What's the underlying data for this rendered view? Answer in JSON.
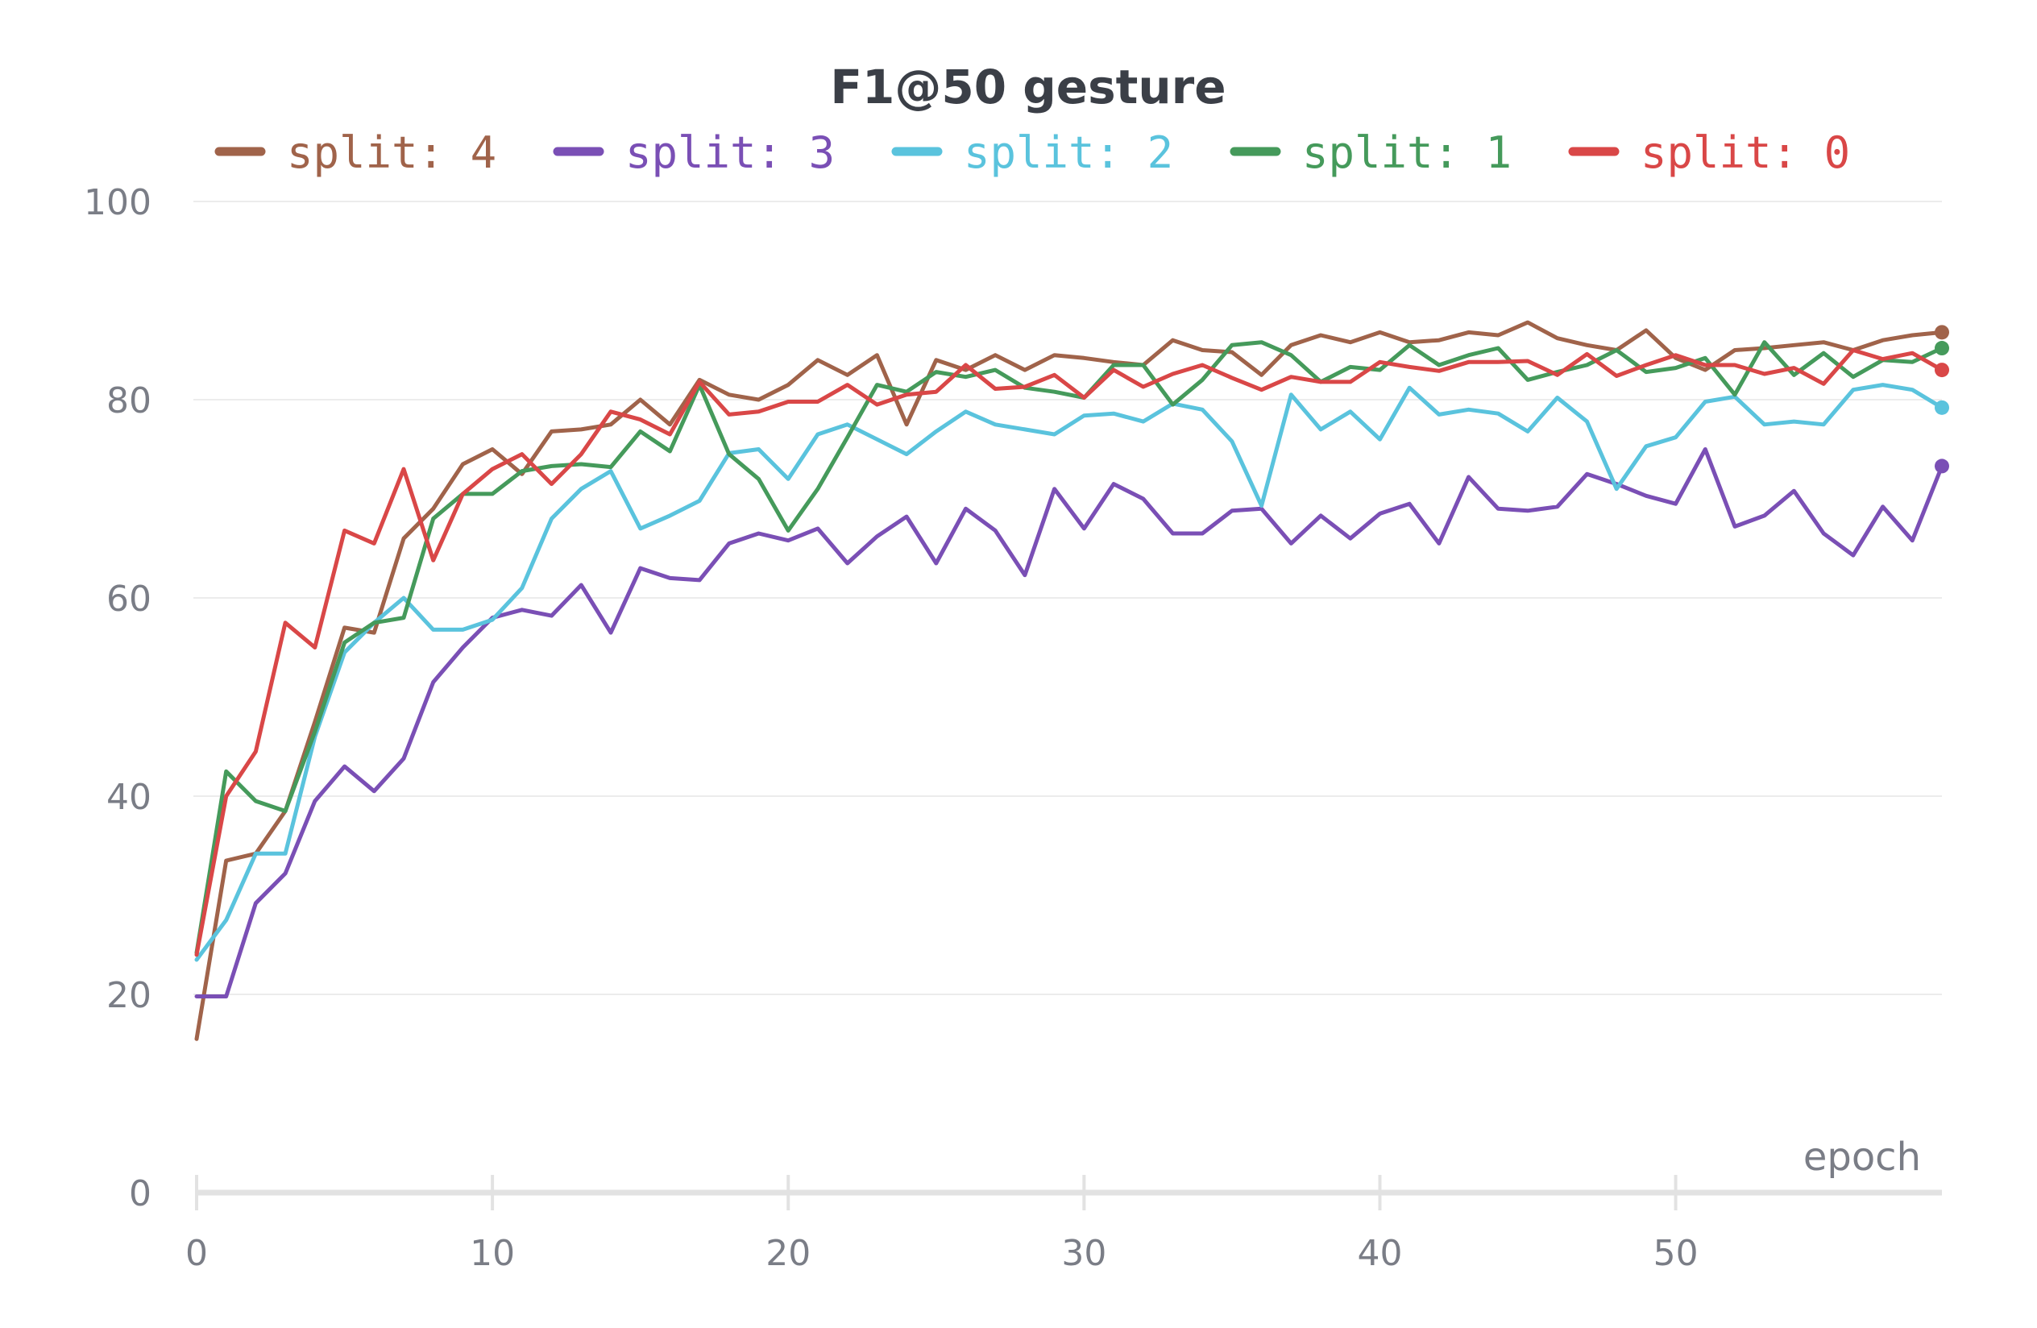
{
  "chart_data": {
    "type": "line",
    "title": "F1@50 gesture",
    "xlabel": "epoch",
    "ylabel": "",
    "xlim": [
      0,
      59
    ],
    "ylim": [
      0,
      100
    ],
    "xticks": [
      0,
      10,
      20,
      30,
      40,
      50
    ],
    "yticks": [
      0,
      20,
      40,
      60,
      80,
      100
    ],
    "grid": true,
    "legend_position": "top",
    "series": [
      {
        "name": "split: 4",
        "color": "#a0634a",
        "x": [
          0,
          1,
          2,
          3,
          4,
          5,
          6,
          7,
          8,
          9,
          10,
          11,
          12,
          13,
          14,
          15,
          16,
          17,
          18,
          19,
          20,
          21,
          22,
          23,
          24,
          25,
          26,
          27,
          28,
          29,
          30,
          31,
          32,
          33,
          34,
          35,
          36,
          37,
          38,
          39,
          40,
          41,
          42,
          43,
          44,
          45,
          46,
          47,
          48,
          49,
          50,
          51,
          52,
          53,
          54,
          55,
          56,
          57,
          58,
          59
        ],
        "values": [
          15.5,
          33.5,
          34.2,
          38.5,
          47.5,
          57,
          56.5,
          66,
          69,
          73.5,
          75,
          72.5,
          76.8,
          77,
          77.5,
          80,
          77.5,
          82,
          80.5,
          80,
          81.5,
          84,
          82.5,
          84.5,
          77.5,
          84,
          83,
          84.5,
          83,
          84.5,
          84.2,
          83.8,
          83.5,
          86,
          85,
          84.8,
          82.5,
          85.5,
          86.5,
          85.8,
          86.8,
          85.8,
          86,
          86.8,
          86.5,
          87.8,
          86.2,
          85.5,
          85,
          87,
          84.2,
          83,
          85,
          85.2,
          85.5,
          85.8,
          85,
          86,
          86.5,
          86.8
        ]
      },
      {
        "name": "split: 3",
        "color": "#7a4fb5",
        "x": [
          0,
          1,
          2,
          3,
          4,
          5,
          6,
          7,
          8,
          9,
          10,
          11,
          12,
          13,
          14,
          15,
          16,
          17,
          18,
          19,
          20,
          21,
          22,
          23,
          24,
          25,
          26,
          27,
          28,
          29,
          30,
          31,
          32,
          33,
          34,
          35,
          36,
          37,
          38,
          39,
          40,
          41,
          42,
          43,
          44,
          45,
          46,
          47,
          48,
          49,
          50,
          51,
          52,
          53,
          54,
          55,
          56,
          57,
          58,
          59
        ],
        "values": [
          19.8,
          19.8,
          29.2,
          32.2,
          39.5,
          43,
          40.5,
          43.8,
          51.5,
          55,
          58,
          58.8,
          58.2,
          61.3,
          56.5,
          63,
          62,
          61.8,
          65.5,
          66.5,
          65.8,
          67,
          63.5,
          66.2,
          68.2,
          63.5,
          69,
          66.8,
          62.3,
          71,
          67,
          71.5,
          70,
          66.5,
          66.5,
          68.8,
          69,
          65.5,
          68.3,
          66,
          68.5,
          69.5,
          65.5,
          72.2,
          69,
          68.8,
          69.2,
          72.5,
          71.5,
          70.3,
          69.5,
          75,
          67.2,
          68.3,
          70.8,
          66.5,
          64.3,
          69.2,
          65.8,
          73.3
        ]
      },
      {
        "name": "split: 2",
        "color": "#5ac3dd",
        "x": [
          0,
          1,
          2,
          3,
          4,
          5,
          6,
          7,
          8,
          9,
          10,
          11,
          12,
          13,
          14,
          15,
          16,
          17,
          18,
          19,
          20,
          21,
          22,
          23,
          24,
          25,
          26,
          27,
          28,
          29,
          30,
          31,
          32,
          33,
          34,
          35,
          36,
          37,
          38,
          39,
          40,
          41,
          42,
          43,
          44,
          45,
          46,
          47,
          48,
          49,
          50,
          51,
          52,
          53,
          54,
          55,
          56,
          57,
          58,
          59
        ],
        "values": [
          23.5,
          27.5,
          34.2,
          34.2,
          46,
          54.5,
          57.5,
          60,
          56.8,
          56.8,
          57.8,
          61,
          68,
          71,
          72.8,
          67,
          68.3,
          69.8,
          74.6,
          75,
          72,
          76.5,
          77.5,
          76,
          74.5,
          76.8,
          78.8,
          77.5,
          77,
          76.5,
          78.4,
          78.6,
          77.8,
          79.6,
          79,
          75.8,
          69.3,
          80.5,
          77,
          78.8,
          76,
          81.2,
          78.5,
          79,
          78.6,
          76.8,
          80.2,
          77.8,
          71,
          75.3,
          76.2,
          79.8,
          80.3,
          77.5,
          77.8,
          77.5,
          81,
          81.5,
          81,
          79.2
        ]
      },
      {
        "name": "split: 1",
        "color": "#459a5b",
        "x": [
          0,
          1,
          2,
          3,
          4,
          5,
          6,
          7,
          8,
          9,
          10,
          11,
          12,
          13,
          14,
          15,
          16,
          17,
          18,
          19,
          20,
          21,
          22,
          23,
          24,
          25,
          26,
          27,
          28,
          29,
          30,
          31,
          32,
          33,
          34,
          35,
          36,
          37,
          38,
          39,
          40,
          41,
          42,
          43,
          44,
          45,
          46,
          47,
          48,
          49,
          50,
          51,
          52,
          53,
          54,
          55,
          56,
          57,
          58,
          59
        ],
        "values": [
          24.2,
          42.5,
          39.5,
          38.5,
          46.5,
          55.5,
          57.5,
          58,
          68,
          70.5,
          70.5,
          72.8,
          73.3,
          73.5,
          73.2,
          76.8,
          74.8,
          81.5,
          74.5,
          72,
          66.8,
          71,
          76.2,
          81.5,
          80.8,
          82.8,
          82.3,
          83,
          81.2,
          80.8,
          80.2,
          83.5,
          83.5,
          79.5,
          82,
          85.5,
          85.8,
          84.5,
          81.8,
          83.3,
          83,
          85.5,
          83.5,
          84.5,
          85.2,
          82,
          82.8,
          83.5,
          85,
          82.8,
          83.2,
          84.2,
          80.5,
          85.8,
          82.5,
          84.7,
          82.3,
          84,
          83.8,
          85.2
        ]
      },
      {
        "name": "split: 0",
        "color": "#d94747",
        "x": [
          0,
          1,
          2,
          3,
          4,
          5,
          6,
          7,
          8,
          9,
          10,
          11,
          12,
          13,
          14,
          15,
          16,
          17,
          18,
          19,
          20,
          21,
          22,
          23,
          24,
          25,
          26,
          27,
          28,
          29,
          30,
          31,
          32,
          33,
          34,
          35,
          36,
          37,
          38,
          39,
          40,
          41,
          42,
          43,
          44,
          45,
          46,
          47,
          48,
          49,
          50,
          51,
          52,
          53,
          54,
          55,
          56,
          57,
          58,
          59
        ],
        "values": [
          24,
          40,
          44.5,
          57.5,
          55,
          66.8,
          65.5,
          73,
          63.8,
          70.5,
          73,
          74.5,
          71.5,
          74.5,
          78.8,
          78,
          76.5,
          81.8,
          78.5,
          78.8,
          79.8,
          79.8,
          81.5,
          79.5,
          80.5,
          80.8,
          83.5,
          81.1,
          81.3,
          82.5,
          80.2,
          83,
          81.3,
          82.6,
          83.5,
          82.2,
          81,
          82.3,
          81.8,
          81.8,
          83.8,
          83.3,
          82.9,
          83.8,
          83.8,
          83.9,
          82.5,
          84.6,
          82.4,
          83.5,
          84.5,
          83.5,
          83.5,
          82.6,
          83.2,
          81.6,
          85,
          84.1,
          84.7,
          83
        ]
      }
    ]
  }
}
